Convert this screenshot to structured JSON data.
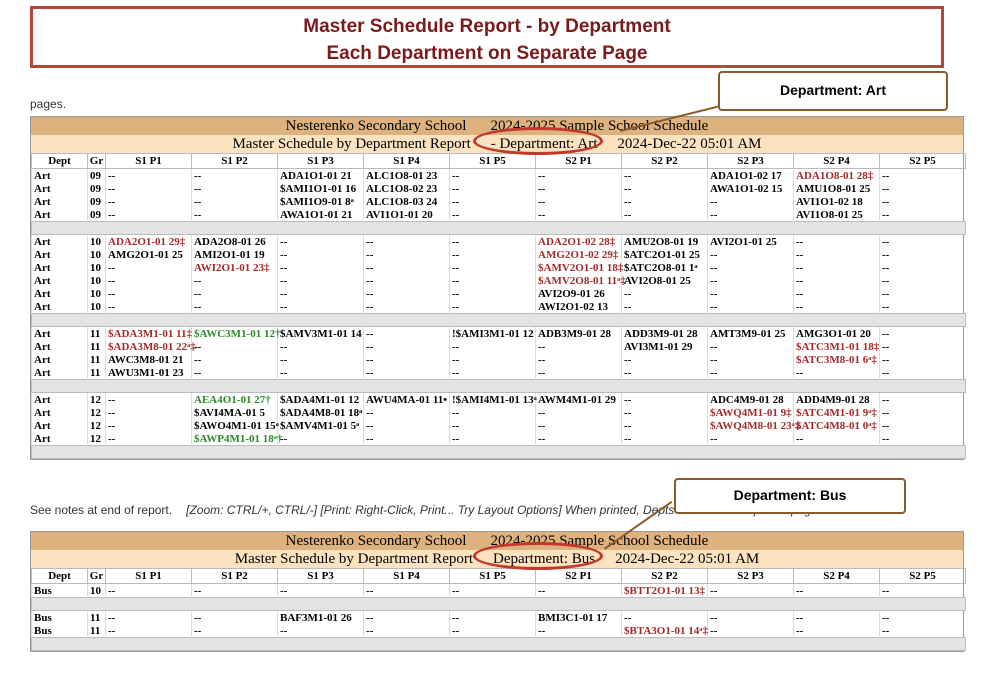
{
  "banner": {
    "line1": "Master Schedule Report - by Department",
    "line2": "Each Department on Separate Page"
  },
  "callouts": {
    "art": "Department: Art",
    "bus": "Department: Bus"
  },
  "top_fragment": "pages.",
  "columns": [
    "Dept",
    "Gr",
    "S1 P1",
    "S1 P2",
    "S1 P3",
    "S1 P4",
    "S1 P5",
    "S2 P1",
    "S2 P2",
    "S2 P3",
    "S2 P4",
    "S2 P5"
  ],
  "reports": [
    {
      "school": "Nesterenko Secondary School",
      "year": "2024-2025 Sample School Schedule",
      "subtitle": "Master Schedule by Department Report",
      "department": "- Department: Art",
      "timestamp": "2024-Dec-22 05:01 AM",
      "rows": [
        [
          "Art",
          "09",
          "--",
          "--",
          "ADA1O1-01 21",
          "ALC1O8-01 23",
          "--",
          "--",
          "--",
          "ADA1O1-02 17",
          "ADA1O8-01 28‡",
          "--"
        ],
        [
          "Art",
          "09",
          "--",
          "--",
          "$AMI1O1-01 16",
          "ALC1O8-02 23",
          "--",
          "--",
          "--",
          "AWA1O1-02 15",
          "AMU1O8-01 25",
          "--"
        ],
        [
          "Art",
          "09",
          "--",
          "--",
          "$AMI1O9-01 8ᵃ",
          "ALC1O8-03 24",
          "--",
          "--",
          "--",
          "--",
          "AVI1O1-02 18",
          "--"
        ],
        [
          "Art",
          "09",
          "--",
          "--",
          "AWA1O1-01 21",
          "AVI1O1-01 20",
          "--",
          "--",
          "--",
          "--",
          "AVI1O8-01 25",
          "--"
        ],
        "sep",
        [
          "Art",
          "10",
          "ADA2O1-01 29‡",
          "ADA2O8-01 26",
          "--",
          "--",
          "--",
          "ADA2O1-02 28‡",
          "AMU2O8-01 19",
          "AVI2O1-01 25",
          "--",
          "--"
        ],
        [
          "Art",
          "10",
          "AMG2O1-01 25",
          "AMI2O1-01 19",
          "--",
          "--",
          "--",
          "AMG2O1-02 29‡",
          "$ATC2O1-01 25",
          "--",
          "--",
          "--"
        ],
        [
          "Art",
          "10",
          "--",
          "AWI2O1-01 23‡",
          "--",
          "--",
          "--",
          "$AMV2O1-01 18‡",
          "$ATC2O8-01 1ᵃ",
          "--",
          "--",
          "--"
        ],
        [
          "Art",
          "10",
          "--",
          "--",
          "--",
          "--",
          "--",
          "$AMV2O8-01 11ᵃ‡",
          "AVI2O8-01 25",
          "--",
          "--",
          "--"
        ],
        [
          "Art",
          "10",
          "--",
          "--",
          "--",
          "--",
          "--",
          "AVI2O9-01 26",
          "--",
          "--",
          "--",
          "--"
        ],
        [
          "Art",
          "10",
          "--",
          "--",
          "--",
          "--",
          "--",
          "AWI2O1-02 13",
          "--",
          "--",
          "--",
          "--"
        ],
        "sep",
        [
          "Art",
          "11",
          "$ADA3M1-01 11‡",
          "$AWC3M1-01 12†",
          "$AMV3M1-01 14",
          "--",
          "!$AMI3M1-01 12",
          "ADB3M9-01 28",
          "ADD3M9-01 28",
          "AMT3M9-01 25",
          "AMG3O1-01 20",
          "--"
        ],
        [
          "Art",
          "11",
          "$ADA3M8-01 22ᵃ‡",
          "--",
          "--",
          "--",
          "--",
          "--",
          "AVI3M1-01 29",
          "--",
          "$ATC3M1-01 18‡",
          "--"
        ],
        [
          "Art",
          "11",
          "AWC3M8-01 21",
          "--",
          "--",
          "--",
          "--",
          "--",
          "--",
          "--",
          "$ATC3M8-01 6ᵃ‡",
          "--"
        ],
        [
          "Art",
          "11",
          "AWU3M1-01 23",
          "--",
          "--",
          "--",
          "--",
          "--",
          "--",
          "--",
          "--",
          "--"
        ],
        "sep",
        [
          "Art",
          "12",
          "--",
          "AEA4O1-01 27†",
          "$ADA4M1-01 12",
          "AWU4MA-01 11•",
          "!$AMI4M1-01 13ᵃ",
          "AWM4M1-01 29",
          "--",
          "ADC4M9-01 28",
          "ADD4M9-01 28",
          "--"
        ],
        [
          "Art",
          "12",
          "--",
          "$AVI4MA-01 5",
          "$ADA4M8-01 18ᵃ",
          "--",
          "--",
          "--",
          "--",
          "$AWQ4M1-01 9‡",
          "$ATC4M1-01 9ᵃ‡",
          "--"
        ],
        [
          "Art",
          "12",
          "--",
          "$AWO4M1-01 15ᵃ",
          "$AMV4M1-01 5ᵃ",
          "--",
          "--",
          "--",
          "--",
          "$AWQ4M8-01 23ᵃ‡",
          "$ATC4M8-01 0ᵃ‡",
          "--"
        ],
        [
          "Art",
          "12",
          "--",
          "$AWP4M1-01 18ᵃ†",
          "--",
          "--",
          "--",
          "--",
          "--",
          "--",
          "--",
          "--"
        ],
        "sep"
      ]
    },
    {
      "school": "Nesterenko Secondary School",
      "year": "2024-2025 Sample School Schedule",
      "subtitle": "Master Schedule by Department Report",
      "department": "Department: Bus",
      "timestamp": "2024-Dec-22 05:01 AM",
      "rows": [
        [
          "Bus",
          "10",
          "--",
          "--",
          "--",
          "--",
          "--",
          "--",
          "$BTT2O1-01 13‡",
          "--",
          "--",
          "--"
        ],
        "sep",
        [
          "Bus",
          "11",
          "--",
          "--",
          "BAF3M1-01 26",
          "--",
          "--",
          "BMI3C1-01 17",
          "--",
          "--",
          "--",
          "--"
        ],
        [
          "Bus",
          "11",
          "--",
          "--",
          "--",
          "--",
          "--",
          "--",
          "$BTA3O1-01 14ᵃ‡",
          "--",
          "--",
          "--"
        ],
        "sep"
      ]
    }
  ],
  "notes": {
    "text": "See notes at end of report.",
    "hint": "[Zoom: CTRL/+, CTRL/-] [Print: Right-Click, Print... Try Layout Options] When printed, Depts will be on a separate pages."
  },
  "colors": {
    "red": "#a12a2a",
    "green": "#2a8a2a",
    "header": "#ddb27e",
    "subheader": "#fde2c0",
    "annotation": "#c0392b"
  }
}
